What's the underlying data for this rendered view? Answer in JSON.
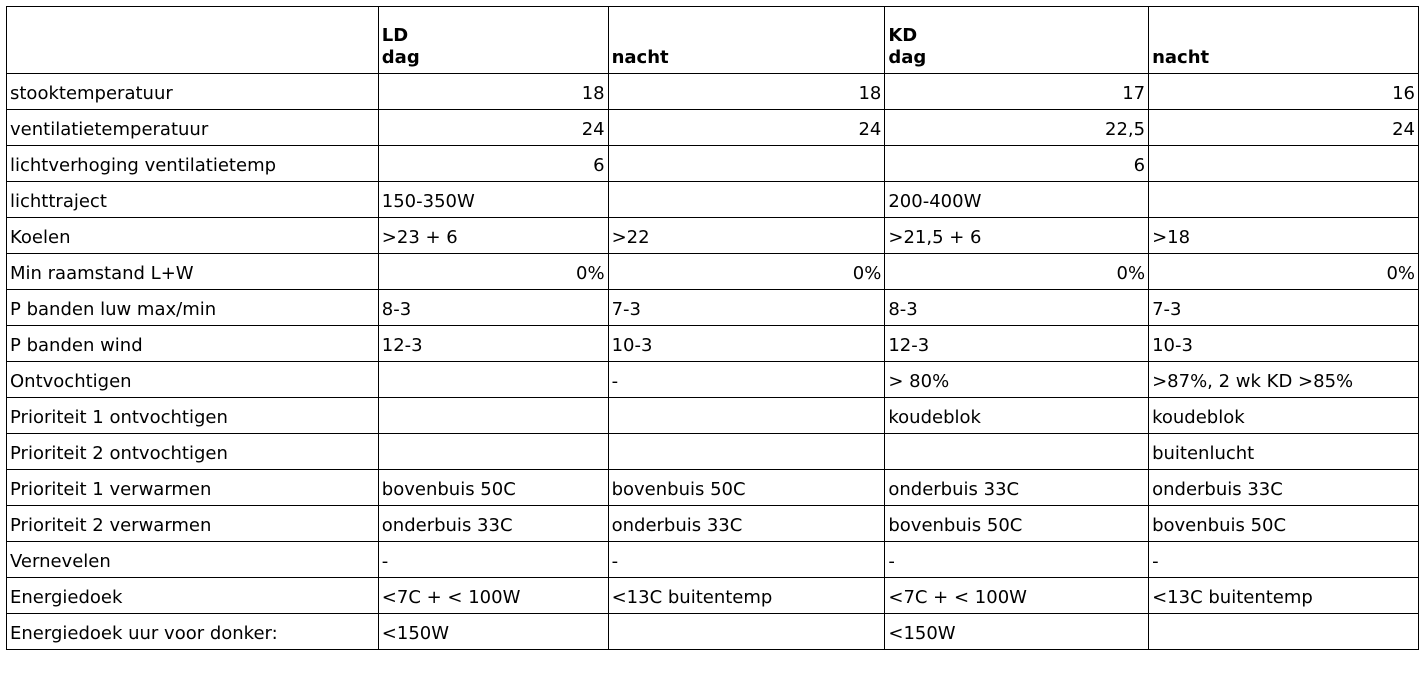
{
  "table": {
    "header": [
      {
        "top": "",
        "bottom": ""
      },
      {
        "top": "LD",
        "bottom": "dag"
      },
      {
        "top": "",
        "bottom": "nacht"
      },
      {
        "top": "KD",
        "bottom": "dag"
      },
      {
        "top": "",
        "bottom": "nacht"
      }
    ],
    "rows": [
      {
        "label": "stooktemperatuur",
        "cells": [
          "18",
          "18",
          "17",
          "16"
        ],
        "numeric": [
          true,
          true,
          true,
          true
        ]
      },
      {
        "label": "ventilatietemperatuur",
        "cells": [
          "24",
          "24",
          "22,5",
          "24"
        ],
        "numeric": [
          true,
          true,
          true,
          true
        ]
      },
      {
        "label": "lichtverhoging ventilatietemp",
        "cells": [
          "6",
          "",
          "6",
          ""
        ],
        "numeric": [
          true,
          false,
          true,
          false
        ]
      },
      {
        "label": "lichttraject",
        "cells": [
          "150-350W",
          "",
          "200-400W",
          ""
        ],
        "numeric": [
          false,
          false,
          false,
          false
        ]
      },
      {
        "label": "Koelen",
        "cells": [
          ">23 + 6",
          ">22",
          ">21,5 + 6",
          ">18"
        ],
        "numeric": [
          false,
          false,
          false,
          false
        ]
      },
      {
        "label": "Min raamstand L+W",
        "cells": [
          "0%",
          "0%",
          "0%",
          "0%"
        ],
        "numeric": [
          true,
          true,
          true,
          true
        ]
      },
      {
        "label": "P banden luw max/min",
        "cells": [
          "8-3",
          "7-3",
          "8-3",
          "7-3"
        ],
        "numeric": [
          false,
          false,
          false,
          false
        ]
      },
      {
        "label": "P banden wind",
        "cells": [
          "12-3",
          "10-3",
          "12-3",
          "10-3"
        ],
        "numeric": [
          false,
          false,
          false,
          false
        ]
      },
      {
        "label": "Ontvochtigen",
        "cells": [
          "",
          "-",
          "> 80%",
          ">87%, 2 wk KD >85%"
        ],
        "numeric": [
          false,
          false,
          false,
          false
        ]
      },
      {
        "label": "Prioriteit 1 ontvochtigen",
        "cells": [
          "",
          "",
          "koudeblok",
          "koudeblok"
        ],
        "numeric": [
          false,
          false,
          false,
          false
        ]
      },
      {
        "label": "Prioriteit 2 ontvochtigen",
        "cells": [
          "",
          "",
          "",
          "buitenlucht"
        ],
        "numeric": [
          false,
          false,
          false,
          false
        ]
      },
      {
        "label": "Prioriteit 1 verwarmen",
        "cells": [
          "bovenbuis 50C",
          "bovenbuis 50C",
          "onderbuis 33C",
          "onderbuis 33C"
        ],
        "numeric": [
          false,
          false,
          false,
          false
        ]
      },
      {
        "label": "Prioriteit 2 verwarmen",
        "cells": [
          "onderbuis 33C",
          "onderbuis 33C",
          "bovenbuis 50C",
          "bovenbuis 50C"
        ],
        "numeric": [
          false,
          false,
          false,
          false
        ]
      },
      {
        "label": "Vernevelen",
        "cells": [
          "-",
          "-",
          "-",
          "-"
        ],
        "numeric": [
          false,
          false,
          false,
          false
        ]
      },
      {
        "label": "Energiedoek",
        "cells": [
          "<7C + < 100W",
          "<13C buitentemp",
          "<7C + < 100W",
          "<13C buitentemp"
        ],
        "numeric": [
          false,
          false,
          false,
          false
        ]
      },
      {
        "label": "Energiedoek uur voor donker:",
        "cells": [
          "<150W",
          "",
          "<150W",
          ""
        ],
        "numeric": [
          false,
          false,
          false,
          false
        ]
      }
    ]
  }
}
